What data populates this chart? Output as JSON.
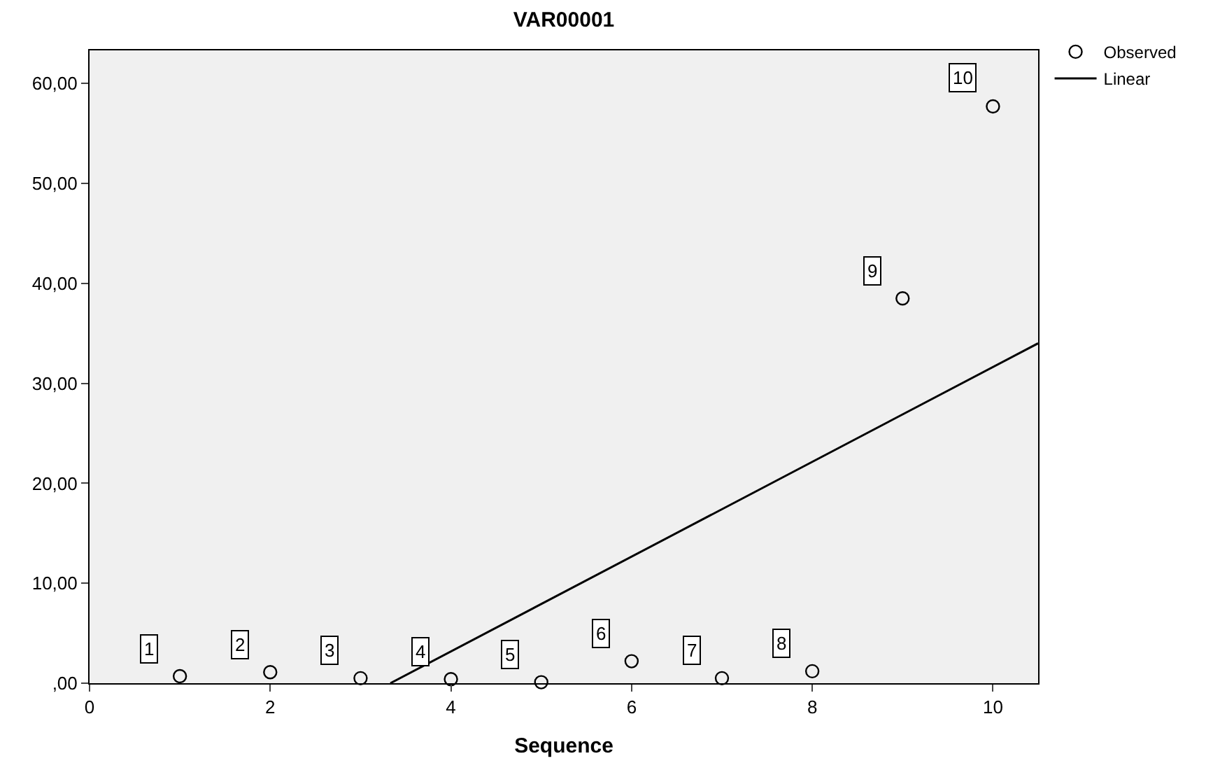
{
  "chart_data": {
    "type": "scatter",
    "title": "VAR00001",
    "xlabel": "Sequence",
    "xlim": [
      0,
      10.5
    ],
    "xticks": [
      0,
      2,
      4,
      6,
      8,
      10
    ],
    "ylim": [
      0,
      63.3
    ],
    "yticks": [
      {
        "value": 0,
        "label": ",00"
      },
      {
        "value": 10,
        "label": "10,00"
      },
      {
        "value": 20,
        "label": "20,00"
      },
      {
        "value": 30,
        "label": "30,00"
      },
      {
        "value": 40,
        "label": "40,00"
      },
      {
        "value": 50,
        "label": "50,00"
      },
      {
        "value": 60,
        "label": "60,00"
      }
    ],
    "grid": false,
    "legend": "top right",
    "series": [
      {
        "name": "Observed",
        "marker": "circle",
        "color": "#000000",
        "x": [
          1,
          2,
          3,
          4,
          5,
          6,
          7,
          8,
          9,
          10
        ],
        "values": [
          0.7,
          1.1,
          0.5,
          0.4,
          0.1,
          2.2,
          0.5,
          1.2,
          38.5,
          57.7
        ]
      },
      {
        "name": "Linear",
        "type": "line",
        "color": "#000000",
        "x": [
          3.33,
          10.5
        ],
        "values": [
          0,
          34.0
        ]
      }
    ],
    "annotations": [
      {
        "text": "1",
        "x": 1,
        "y": 0.7
      },
      {
        "text": "2",
        "x": 2,
        "y": 1.1
      },
      {
        "text": "3",
        "x": 3,
        "y": 0.5
      },
      {
        "text": "4",
        "x": 4,
        "y": 0.4
      },
      {
        "text": "5",
        "x": 5,
        "y": 0.1
      },
      {
        "text": "6",
        "x": 6,
        "y": 2.2
      },
      {
        "text": "7",
        "x": 7,
        "y": 0.5
      },
      {
        "text": "8",
        "x": 8,
        "y": 1.2
      },
      {
        "text": "9",
        "x": 9,
        "y": 38.5
      },
      {
        "text": "10",
        "x": 10,
        "y": 57.7
      }
    ]
  }
}
